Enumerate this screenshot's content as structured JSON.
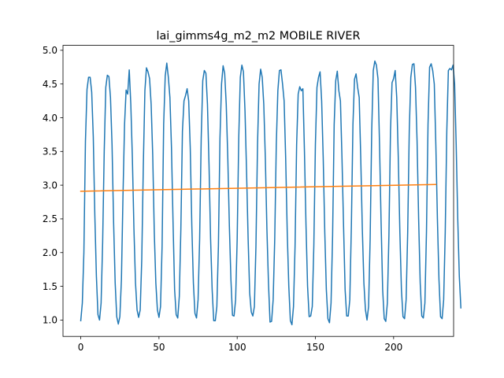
{
  "chart_data": {
    "type": "line",
    "title": "lai_gimms4g_m2_m2 MOBILE RIVER",
    "xlabel": "",
    "ylabel": "",
    "xlim": [
      -11.35,
      238.35
    ],
    "ylim": [
      0.757,
      5.073
    ],
    "grid": false,
    "x_ticks": [
      0,
      50,
      100,
      150,
      200
    ],
    "y_ticks": [
      1.0,
      1.5,
      2.0,
      2.5,
      3.0,
      3.5,
      4.0,
      4.5,
      5.0
    ],
    "x_tick_labels": [
      "0",
      "50",
      "100",
      "150",
      "200"
    ],
    "y_tick_labels": [
      "1.0",
      "1.5",
      "2.0",
      "2.5",
      "3.0",
      "3.5",
      "4.0",
      "4.5",
      "5.0"
    ],
    "series": [
      {
        "color": "#1f77b4",
        "x_start": 0,
        "values": [
          0.99,
          1.25,
          2.0,
          3.65,
          4.42,
          4.6,
          4.6,
          4.38,
          3.72,
          2.55,
          1.65,
          1.08,
          1.0,
          1.25,
          2.15,
          3.5,
          4.45,
          4.63,
          4.61,
          4.3,
          3.6,
          2.45,
          1.55,
          1.05,
          0.94,
          1.05,
          1.6,
          2.85,
          3.9,
          4.41,
          4.35,
          4.71,
          4.2,
          3.4,
          2.35,
          1.55,
          1.15,
          1.04,
          1.15,
          1.9,
          3.3,
          4.4,
          4.74,
          4.68,
          4.58,
          4.2,
          3.45,
          2.3,
          1.55,
          1.15,
          1.04,
          1.2,
          2.1,
          3.9,
          4.62,
          4.81,
          4.6,
          4.3,
          3.55,
          2.45,
          1.45,
          1.08,
          1.03,
          1.35,
          2.35,
          3.8,
          4.25,
          4.33,
          4.43,
          4.25,
          3.55,
          2.4,
          1.55,
          1.1,
          1.03,
          1.3,
          2.2,
          3.7,
          4.55,
          4.7,
          4.66,
          4.2,
          3.3,
          2.2,
          1.45,
          0.99,
          0.99,
          1.2,
          2.1,
          3.7,
          4.5,
          4.77,
          4.66,
          4.2,
          3.4,
          2.4,
          1.6,
          1.07,
          1.06,
          1.3,
          2.2,
          3.7,
          4.6,
          4.78,
          4.68,
          4.1,
          3.2,
          2.2,
          1.4,
          1.12,
          1.06,
          1.2,
          2.1,
          3.6,
          4.5,
          4.72,
          4.6,
          4.2,
          3.4,
          2.35,
          1.55,
          0.97,
          0.98,
          1.3,
          2.2,
          3.6,
          4.4,
          4.7,
          4.71,
          4.5,
          4.25,
          3.4,
          2.3,
          1.5,
          0.99,
          0.93,
          1.2,
          2.1,
          3.6,
          4.35,
          4.46,
          4.4,
          4.43,
          3.5,
          2.4,
          1.5,
          1.05,
          1.06,
          1.2,
          2.1,
          3.6,
          4.45,
          4.6,
          4.68,
          4.25,
          3.4,
          2.3,
          1.45,
          1.02,
          0.96,
          1.25,
          2.25,
          3.9,
          4.55,
          4.69,
          4.4,
          4.25,
          3.4,
          2.4,
          1.45,
          1.06,
          1.06,
          1.3,
          2.4,
          3.9,
          4.57,
          4.65,
          4.45,
          4.3,
          3.4,
          2.35,
          1.55,
          1.15,
          1.0,
          1.2,
          2.2,
          3.8,
          4.7,
          4.84,
          4.78,
          4.58,
          3.6,
          2.45,
          1.45,
          1.02,
          0.98,
          1.25,
          2.25,
          3.8,
          4.52,
          4.58,
          4.7,
          4.3,
          3.4,
          2.3,
          1.45,
          1.05,
          1.02,
          1.3,
          2.3,
          3.8,
          4.6,
          4.79,
          4.8,
          4.45,
          3.65,
          2.5,
          1.55,
          1.06,
          1.03,
          1.25,
          2.3,
          3.9,
          4.75,
          4.8,
          4.7,
          4.5,
          3.6,
          2.5,
          1.6,
          1.05,
          1.02,
          1.3,
          2.3,
          3.8,
          4.7,
          4.73,
          4.71,
          4.78,
          4.5,
          3.6,
          2.5,
          1.65,
          1.18
        ]
      },
      {
        "color": "#ff7f0e",
        "x": [
          0,
          227
        ],
        "y": [
          2.91,
          3.01
        ]
      }
    ]
  }
}
